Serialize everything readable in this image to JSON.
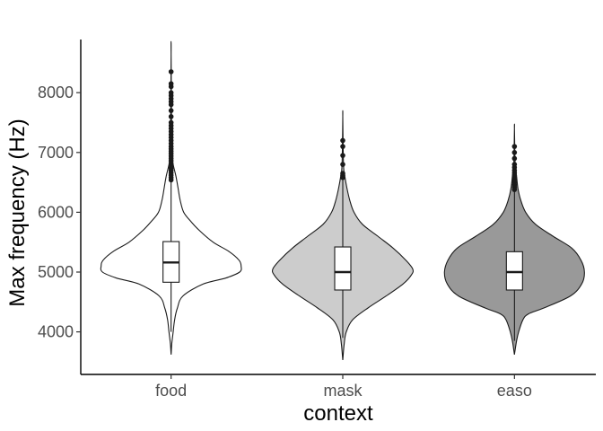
{
  "chart_data": {
    "type": "violin",
    "title": "",
    "xlabel": "context",
    "ylabel": "Max frequency (Hz)",
    "ylim": [
      3300,
      8900
    ],
    "yticks": [
      4000,
      5000,
      6000,
      7000,
      8000
    ],
    "grid": false,
    "categories": [
      "food",
      "mask",
      "easo"
    ],
    "groups": [
      {
        "name": "food",
        "fill": "#ffffff",
        "range": [
          3620,
          8650
        ],
        "box": {
          "q1": 4830,
          "median": 5160,
          "q3": 5510
        },
        "whisker": [
          4000,
          6530
        ],
        "density": [
          [
            3620,
            0.0
          ],
          [
            3800,
            0.01
          ],
          [
            4000,
            0.03
          ],
          [
            4200,
            0.05
          ],
          [
            4400,
            0.09
          ],
          [
            4600,
            0.17
          ],
          [
            4800,
            0.46
          ],
          [
            4900,
            0.78
          ],
          [
            5000,
            0.98
          ],
          [
            5100,
            1.0
          ],
          [
            5200,
            0.97
          ],
          [
            5350,
            0.82
          ],
          [
            5500,
            0.6
          ],
          [
            5700,
            0.4
          ],
          [
            5850,
            0.28
          ],
          [
            6000,
            0.18
          ],
          [
            6200,
            0.13
          ],
          [
            6400,
            0.1
          ],
          [
            6600,
            0.07
          ],
          [
            6800,
            0.03
          ],
          [
            7000,
            0.01
          ],
          [
            8650,
            0.0
          ]
        ],
        "outliers": [
          6540,
          6580,
          6620,
          6660,
          6700,
          6740,
          6780,
          6820,
          6860,
          6900,
          6940,
          6980,
          7020,
          7060,
          7100,
          7150,
          7200,
          7250,
          7300,
          7350,
          7400,
          7450,
          7500,
          7600,
          7700,
          7800,
          7850,
          7900,
          7950,
          8000,
          8100,
          8150,
          8350
        ]
      },
      {
        "name": "mask",
        "fill": "#cccccc",
        "range": [
          3530,
          7600
        ],
        "box": {
          "q1": 4700,
          "median": 5000,
          "q3": 5420
        },
        "whisker": [
          3900,
          6550
        ],
        "density": [
          [
            3530,
            0.0
          ],
          [
            3800,
            0.02
          ],
          [
            4000,
            0.05
          ],
          [
            4200,
            0.14
          ],
          [
            4400,
            0.36
          ],
          [
            4600,
            0.62
          ],
          [
            4800,
            0.86
          ],
          [
            4950,
            0.98
          ],
          [
            5050,
            1.0
          ],
          [
            5200,
            0.9
          ],
          [
            5400,
            0.72
          ],
          [
            5600,
            0.5
          ],
          [
            5800,
            0.28
          ],
          [
            6000,
            0.16
          ],
          [
            6200,
            0.1
          ],
          [
            6400,
            0.06
          ],
          [
            6600,
            0.03
          ],
          [
            6800,
            0.01
          ],
          [
            7600,
            0.0
          ]
        ],
        "outliers": [
          6580,
          6620,
          6650,
          6800,
          6950,
          7100,
          7200
        ]
      },
      {
        "name": "easo",
        "fill": "#999999",
        "range": [
          3620,
          7400
        ],
        "box": {
          "q1": 4700,
          "median": 5000,
          "q3": 5340
        },
        "whisker": [
          3850,
          6350
        ],
        "density": [
          [
            3620,
            0.0
          ],
          [
            3850,
            0.03
          ],
          [
            4000,
            0.06
          ],
          [
            4200,
            0.12
          ],
          [
            4300,
            0.2
          ],
          [
            4400,
            0.42
          ],
          [
            4600,
            0.8
          ],
          [
            4800,
            0.96
          ],
          [
            5000,
            1.0
          ],
          [
            5200,
            0.95
          ],
          [
            5400,
            0.82
          ],
          [
            5600,
            0.55
          ],
          [
            5800,
            0.3
          ],
          [
            6000,
            0.16
          ],
          [
            6200,
            0.09
          ],
          [
            6400,
            0.05
          ],
          [
            6600,
            0.03
          ],
          [
            6800,
            0.01
          ],
          [
            7400,
            0.0
          ]
        ],
        "outliers": [
          6380,
          6420,
          6460,
          6500,
          6540,
          6580,
          6620,
          6660,
          6700,
          6750,
          6800,
          6900,
          7000,
          7100
        ]
      }
    ]
  }
}
